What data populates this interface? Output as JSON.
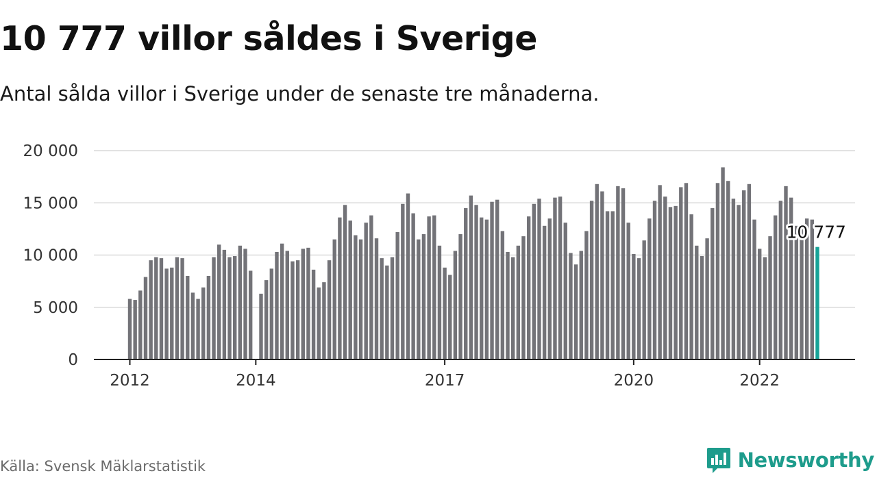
{
  "title": "10 777 villor såldes i Sverige",
  "subtitle": "Antal sålda villor i Sverige under de senaste tre månaderna.",
  "source": "Källa: Svensk Mäklarstatistik",
  "brand": {
    "name": "Newsworthy",
    "icon": "newsworthy-logo-icon"
  },
  "colors": {
    "bar": "#737378",
    "highlight": "#17a398",
    "grid": "#d9d9d9",
    "axis": "#222222",
    "brand": "#1e9c8c"
  },
  "chart_data": {
    "type": "bar",
    "title": "10 777 villor såldes i Sverige",
    "subtitle": "Antal sålda villor i Sverige under de senaste tre månaderna.",
    "xlabel": "",
    "ylabel": "",
    "ylim": [
      0,
      20000
    ],
    "yticks": [
      0,
      5000,
      10000,
      15000,
      20000
    ],
    "ytick_labels": [
      "0",
      "5 000",
      "10 000",
      "15 000",
      "20 000"
    ],
    "xtick_labels": [
      {
        "label": "2012",
        "date": "2012-01"
      },
      {
        "label": "2014",
        "date": "2014-01"
      },
      {
        "label": "2017",
        "date": "2017-01"
      },
      {
        "label": "2020",
        "date": "2020-01"
      },
      {
        "label": "2022",
        "date": "2022-01"
      }
    ],
    "grid": true,
    "legend": "none",
    "highlight_label": "10 777",
    "series": [
      {
        "start": "2012-01",
        "interval": "month",
        "gaps": [
          "2014-01"
        ],
        "values": [
          5800,
          5700,
          6600,
          7900,
          9500,
          9800,
          9700,
          8700,
          8800,
          9800,
          9700,
          8000,
          6400,
          5800,
          6900,
          8000,
          9800,
          11000,
          10500,
          9800,
          9900,
          10900,
          10600,
          8500,
          null,
          6300,
          7600,
          8700,
          10300,
          11100,
          10400,
          9400,
          9500,
          10600,
          10700,
          8600,
          6900,
          7400,
          9500,
          11500,
          13600,
          14800,
          13300,
          11900,
          11500,
          13100,
          13800,
          11600,
          9700,
          9000,
          9800,
          12200,
          14900,
          15900,
          14000,
          11500,
          12000,
          13700,
          13800,
          10900,
          8800,
          8100,
          10400,
          12000,
          14500,
          15700,
          14800,
          13600,
          13400,
          15100,
          15300,
          12300,
          10300,
          9800,
          10900,
          11800,
          13700,
          14900,
          15400,
          12800,
          13500,
          15500,
          15600,
          13100,
          10200,
          9100,
          10400,
          12300,
          15200,
          16800,
          16100,
          14200,
          14200,
          16600,
          16400,
          13100,
          10100,
          9700,
          11400,
          13500,
          15200,
          16700,
          15600,
          14600,
          14700,
          16500,
          16900,
          13900,
          10900,
          9900,
          11600,
          14500,
          16900,
          18400,
          17100,
          15400,
          14800,
          16200,
          16800,
          13400,
          10600,
          9800,
          11800,
          13800,
          15200,
          16600,
          15500,
          12800,
          12800,
          13500,
          13400,
          10777
        ]
      }
    ]
  }
}
